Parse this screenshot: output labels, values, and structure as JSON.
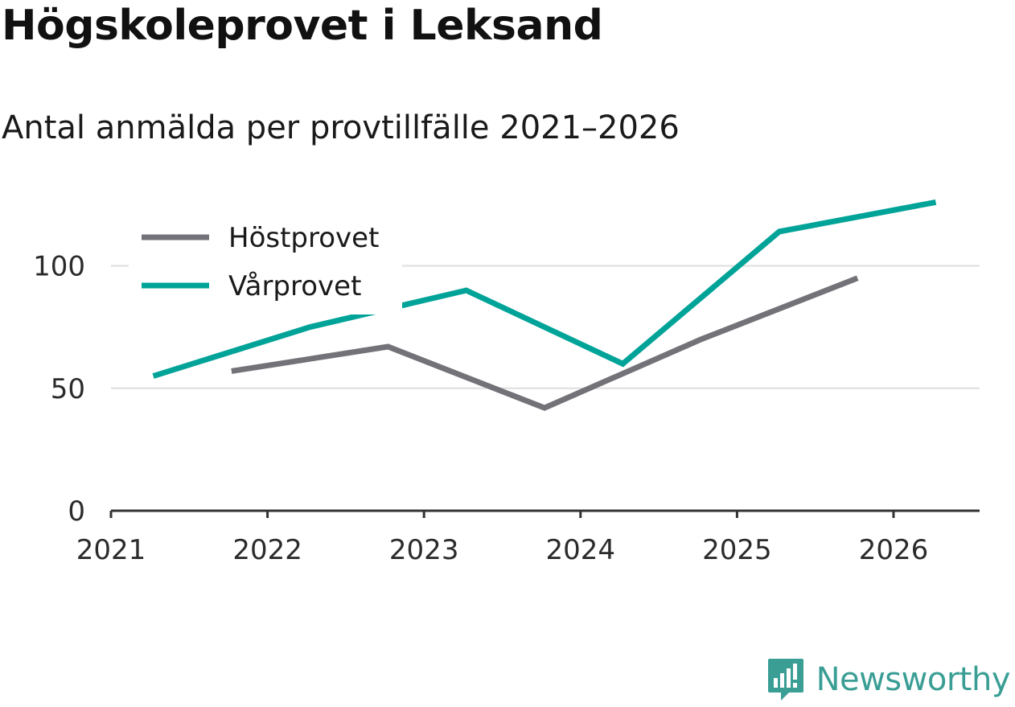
{
  "title": "Högskoleprovet i Leksand",
  "subtitle": "Antal anmälda per provtillfälle 2021–2026",
  "brand": {
    "name": "Newsworthy"
  },
  "colors": {
    "hostprovet": "#737278",
    "varprovet": "#00a398",
    "grid": "#dedede",
    "axis": "#333333",
    "brand": "#3a9e95"
  },
  "chart_data": {
    "type": "line",
    "title": "Högskoleprovet i Leksand",
    "subtitle": "Antal anmälda per provtillfälle 2021–2026",
    "xlabel": "",
    "ylabel": "",
    "xlim": [
      2021,
      2026.55
    ],
    "ylim": [
      0,
      135
    ],
    "x_ticks": [
      "2021",
      "2022",
      "2023",
      "2024",
      "2025",
      "2026"
    ],
    "y_ticks": [
      "0",
      "50",
      "100"
    ],
    "legend_position": "top-left",
    "series": [
      {
        "name": "Höstprovet",
        "color": "#737278",
        "x": [
          2021.77,
          2022.77,
          2023.77,
          2024.77,
          2025.77
        ],
        "values": [
          57,
          67,
          42,
          70,
          95
        ]
      },
      {
        "name": "Vårprovet",
        "color": "#00a398",
        "x": [
          2021.27,
          2022.27,
          2023.27,
          2024.27,
          2025.27,
          2026.27
        ],
        "values": [
          55,
          75,
          90,
          60,
          114,
          126
        ]
      }
    ]
  }
}
